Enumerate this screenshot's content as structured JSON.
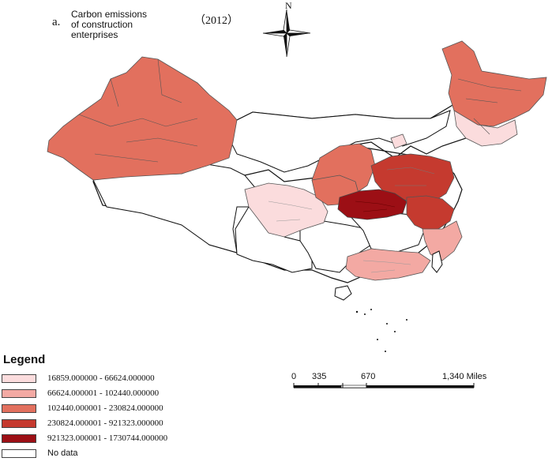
{
  "map": {
    "panel_letter": "a.",
    "title_lines": [
      "Carbon emissions",
      "of construction",
      "enterprises"
    ],
    "year": "（2012）",
    "north_label": "N",
    "north_arrow_icon": "north-arrow-icon"
  },
  "legend": {
    "heading": "Legend",
    "classes": [
      {
        "label": "16859.000000 - 66624.000000",
        "color": "#fbdcdd"
      },
      {
        "label": "66624.000001 - 102440.000000",
        "color": "#f3a9a3"
      },
      {
        "label": "102440.000001 - 230824.000000",
        "color": "#e2705e"
      },
      {
        "label": "230824.000001 - 921323.000000",
        "color": "#c53a2f"
      },
      {
        "label": "921323.000001 - 1730744.000000",
        "color": "#9c0f15"
      },
      {
        "label": "No data",
        "color": "#ffffff"
      }
    ]
  },
  "scale_bar": {
    "ticks": [
      "0",
      "335",
      "670",
      "1,340 Miles"
    ]
  }
}
